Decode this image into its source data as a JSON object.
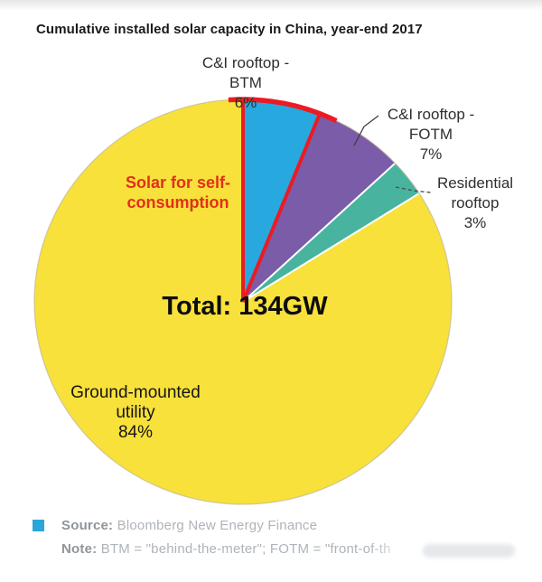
{
  "title": "Cumulative installed solar capacity in China, year-end 2017",
  "chart_data": {
    "type": "pie",
    "title": "Cumulative installed solar capacity in China, year-end 2017",
    "center_label": "Total: 134GW",
    "total_value_gw": 134,
    "units": "GW",
    "direction": "clockwise",
    "start_angle_deg": 0,
    "slices": [
      {
        "label": "C&I rooftop - BTM",
        "pct": 6,
        "color": "#27a8df",
        "highlighted": true
      },
      {
        "label": "C&I rooftop - FOTM",
        "pct": 7,
        "color": "#7a5ca8",
        "highlighted": false
      },
      {
        "label": "Residential rooftop",
        "pct": 3,
        "color": "#48b4a0",
        "highlighted": false
      },
      {
        "label": "Ground-mounted utility",
        "pct": 84,
        "color": "#f8e13b",
        "highlighted": false
      }
    ],
    "highlight_outline_color": "#ec1b23",
    "annotation": "Solar for self-consumption",
    "annotation_color": "#e1301b"
  },
  "labels": {
    "btm": "C&I rooftop -\nBTM\n6%",
    "fotm": "C&I rooftop -\nFOTM\n7%",
    "residential": "Residential\nrooftop\n3%",
    "self_consumption": "Solar for self-\nconsumption",
    "total": "Total: 134GW",
    "ground": "Ground-mounted\nutility\n84%"
  },
  "footer": {
    "legend_square_color": "#2aa6db",
    "source_label": "Source:",
    "source_value": "Bloomberg New Energy Finance",
    "note_label": "Note:",
    "note_value": "BTM = \"behind-the-meter\"; FOTM = \"front-of-th"
  }
}
